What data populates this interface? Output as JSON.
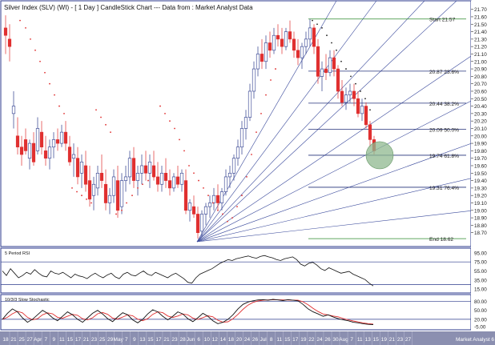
{
  "header": {
    "title": "Silver Index (SLV) (WI) - [ 1 Day ] CandleStick Chart --- Data from : Market Analyst Data"
  },
  "colors": {
    "background": "#ffffff",
    "panel_border": "#2b3a8c",
    "fan_line": "#3a4a9c",
    "fib_line": "#23307a",
    "green_line": "#2e8b2e",
    "candle_up": "#ffffff",
    "candle_up_border": "#2b3a8c",
    "candle_down": "#e03030",
    "dot": "#e03030",
    "dot_alt": "#222222",
    "circle_fill": "#8fb88f",
    "axis_bar": "#8b8fb0",
    "x_axis_text": "#ffffff",
    "rsi_line": "#111111",
    "stoch_k": "#111111",
    "stoch_d": "#e03030"
  },
  "chart_data": [
    {
      "type": "candlestick",
      "title": "Silver Index (SLV) (WI) - [ 1 Day ] CandleStick Chart --- Data from : Market Analyst Data",
      "y_ticks": [
        "21.70",
        "21.60",
        "21.50",
        "21.40",
        "21.30",
        "21.20",
        "21.10",
        "21.00",
        "20.90",
        "20.80",
        "20.70",
        "20.60",
        "20.50",
        "20.40",
        "20.30",
        "20.20",
        "20.10",
        "20.00",
        "19.90",
        "19.80",
        "19.70",
        "19.60",
        "19.50",
        "19.40",
        "19.30",
        "19.20",
        "19.10",
        "19.00",
        "18.90",
        "18.80",
        "18.70"
      ],
      "ylim": [
        18.6,
        21.75
      ],
      "x_ticks": [
        "18",
        "21",
        "25",
        "27",
        "Apr",
        "7",
        "9",
        "11",
        "15",
        "17",
        "21",
        "23",
        "25",
        "29",
        "May",
        "7",
        "9",
        "13",
        "15",
        "17",
        "21",
        "23",
        "28",
        "Jun",
        "6",
        "10",
        "12",
        "14",
        "18",
        "20",
        "24",
        "26",
        "Jul",
        "8",
        "11",
        "15",
        "17",
        "19",
        "22",
        "24",
        "26",
        "30",
        "Aug",
        "7",
        "11",
        "13",
        "15",
        "19",
        "21",
        "23",
        "27",
        "Market Analyst 6"
      ],
      "fib_levels": [
        {
          "label": "Start 21.57",
          "value": 21.57
        },
        {
          "label": "20.87 23.6%",
          "value": 20.87
        },
        {
          "label": "20.44 38.2%",
          "value": 20.44
        },
        {
          "label": "20.09 50.0%",
          "value": 20.09
        },
        {
          "label": "19.74 61.8%",
          "value": 19.74
        },
        {
          "label": "19.31 76.4%",
          "value": 19.31
        },
        {
          "label": "End 18.62",
          "value": 18.62
        }
      ]
    },
    {
      "type": "line",
      "title": "5 Period RSI",
      "y_ticks": [
        "95.00",
        "75.00",
        "55.00",
        "35.00",
        "15.00"
      ],
      "ylim": [
        10,
        100
      ],
      "reference_lines": [
        75,
        25
      ]
    },
    {
      "type": "line",
      "title": "10/3/3 Slow Stochastic",
      "y_ticks": [
        "80.00",
        "50.00",
        "20.00",
        "-5.00"
      ],
      "ylim": [
        -10,
        95
      ],
      "reference_lines": [
        80,
        20
      ],
      "series": [
        {
          "values": []
        },
        {
          "values": []
        }
      ]
    }
  ]
}
